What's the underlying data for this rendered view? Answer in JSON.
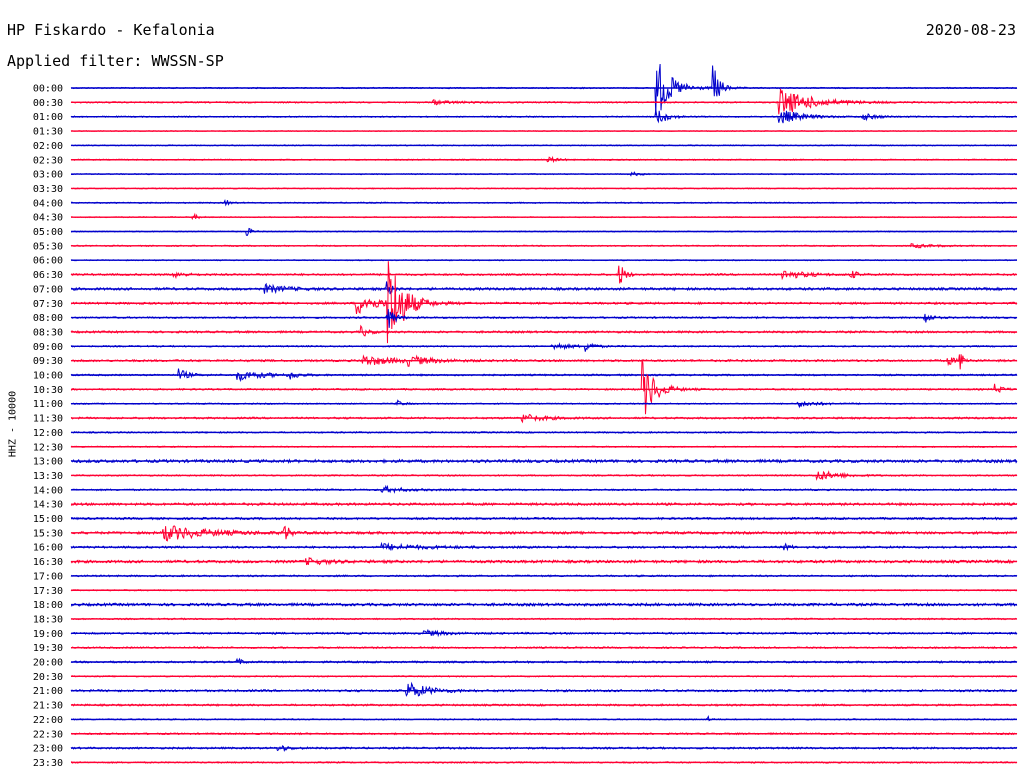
{
  "header": {
    "station": "HP Fiskardo - Kefalonia",
    "date": "2020-08-23",
    "filter": "Applied filter: WWSSN-SP"
  },
  "chart_data": {
    "type": "line",
    "title": "HP Fiskardo - Kefalonia",
    "ylabel": "HHZ - 10000",
    "colors": [
      "#0000cc",
      "#ff0033"
    ],
    "row_labels": [
      "00:00",
      "00:30",
      "01:00",
      "01:30",
      "02:00",
      "02:30",
      "03:00",
      "03:30",
      "04:00",
      "04:30",
      "05:00",
      "05:30",
      "06:00",
      "06:30",
      "07:00",
      "07:30",
      "08:00",
      "08:30",
      "09:00",
      "09:30",
      "10:00",
      "10:30",
      "11:00",
      "11:30",
      "12:00",
      "12:30",
      "13:00",
      "13:30",
      "14:00",
      "14:30",
      "15:00",
      "15:30",
      "16:00",
      "16:30",
      "17:00",
      "17:30",
      "18:00",
      "18:30",
      "19:00",
      "19:30",
      "20:00",
      "20:30",
      "21:00",
      "21:30",
      "22:00",
      "22:30",
      "23:00",
      "23:30"
    ],
    "noise": [
      0.6,
      0.7,
      0.6,
      0.4,
      0.5,
      0.6,
      0.5,
      0.5,
      0.6,
      0.5,
      0.5,
      0.6,
      0.5,
      0.9,
      1.2,
      1.0,
      0.8,
      1.0,
      0.7,
      1.0,
      0.8,
      0.8,
      0.6,
      0.9,
      0.7,
      0.6,
      1.4,
      0.7,
      0.8,
      1.2,
      1.0,
      1.2,
      1.0,
      1.3,
      0.8,
      0.6,
      1.3,
      0.7,
      0.9,
      0.8,
      0.9,
      0.6,
      1.0,
      0.9,
      0.6,
      0.8,
      0.9,
      0.7
    ],
    "events": [
      {
        "row": 0,
        "x": 0.62,
        "amp": 30,
        "dur": 0.014
      },
      {
        "row": 0,
        "x": 0.68,
        "amp": 22,
        "dur": 0.006
      },
      {
        "row": 1,
        "x": 0.384,
        "amp": 2,
        "dur": 0.02
      },
      {
        "row": 1,
        "x": 0.75,
        "amp": 14,
        "dur": 0.03
      },
      {
        "row": 2,
        "x": 0.62,
        "amp": 8,
        "dur": 0.01
      },
      {
        "row": 2,
        "x": 0.75,
        "amp": 8,
        "dur": 0.02
      },
      {
        "row": 2,
        "x": 0.838,
        "amp": 3,
        "dur": 0.015
      },
      {
        "row": 5,
        "x": 0.505,
        "amp": 3,
        "dur": 0.008
      },
      {
        "row": 6,
        "x": 0.593,
        "amp": 2,
        "dur": 0.008
      },
      {
        "row": 8,
        "x": 0.164,
        "amp": 3,
        "dur": 0.004
      },
      {
        "row": 9,
        "x": 0.13,
        "amp": 3,
        "dur": 0.004
      },
      {
        "row": 10,
        "x": 0.187,
        "amp": 4,
        "dur": 0.004
      },
      {
        "row": 11,
        "x": 0.89,
        "amp": 2,
        "dur": 0.02
      },
      {
        "row": 13,
        "x": 0.11,
        "amp": 3,
        "dur": 0.01
      },
      {
        "row": 13,
        "x": 0.581,
        "amp": 11,
        "dur": 0.005
      },
      {
        "row": 13,
        "x": 0.753,
        "amp": 5,
        "dur": 0.02
      },
      {
        "row": 13,
        "x": 0.825,
        "amp": 4,
        "dur": 0.006
      },
      {
        "row": 14,
        "x": 0.205,
        "amp": 4,
        "dur": 0.02
      },
      {
        "row": 14,
        "x": 0.335,
        "amp": 8,
        "dur": 0.004
      },
      {
        "row": 15,
        "x": 0.302,
        "amp": 11,
        "dur": 0.02
      },
      {
        "row": 15,
        "x": 0.336,
        "amp": 50,
        "dur": 0.014
      },
      {
        "row": 16,
        "x": 0.335,
        "amp": 14,
        "dur": 0.006
      },
      {
        "row": 16,
        "x": 0.902,
        "amp": 7,
        "dur": 0.006
      },
      {
        "row": 17,
        "x": 0.308,
        "amp": 5,
        "dur": 0.006
      },
      {
        "row": 18,
        "x": 0.51,
        "amp": 3,
        "dur": 0.02
      },
      {
        "row": 18,
        "x": 0.545,
        "amp": 5,
        "dur": 0.006
      },
      {
        "row": 19,
        "x": 0.31,
        "amp": 5,
        "dur": 0.03
      },
      {
        "row": 19,
        "x": 0.358,
        "amp": 4,
        "dur": 0.02
      },
      {
        "row": 19,
        "x": 0.928,
        "amp": 4,
        "dur": 0.006
      },
      {
        "row": 19,
        "x": 0.941,
        "amp": 8,
        "dur": 0.004
      },
      {
        "row": 20,
        "x": 0.115,
        "amp": 6,
        "dur": 0.008
      },
      {
        "row": 20,
        "x": 0.177,
        "amp": 5,
        "dur": 0.025
      },
      {
        "row": 20,
        "x": 0.233,
        "amp": 4,
        "dur": 0.006
      },
      {
        "row": 21,
        "x": 0.605,
        "amp": 30,
        "dur": 0.012
      },
      {
        "row": 21,
        "x": 0.978,
        "amp": 5,
        "dur": 0.006
      },
      {
        "row": 22,
        "x": 0.345,
        "amp": 3,
        "dur": 0.006
      },
      {
        "row": 22,
        "x": 0.77,
        "amp": 3,
        "dur": 0.02
      },
      {
        "row": 23,
        "x": 0.478,
        "amp": 4,
        "dur": 0.02
      },
      {
        "row": 27,
        "x": 0.79,
        "amp": 5,
        "dur": 0.02
      },
      {
        "row": 28,
        "x": 0.33,
        "amp": 3,
        "dur": 0.02
      },
      {
        "row": 31,
        "x": 0.098,
        "amp": 8,
        "dur": 0.04
      },
      {
        "row": 31,
        "x": 0.226,
        "amp": 10,
        "dur": 0.004
      },
      {
        "row": 32,
        "x": 0.33,
        "amp": 3,
        "dur": 0.04
      },
      {
        "row": 32,
        "x": 0.754,
        "amp": 3,
        "dur": 0.006
      },
      {
        "row": 33,
        "x": 0.25,
        "amp": 3,
        "dur": 0.02
      },
      {
        "row": 38,
        "x": 0.372,
        "amp": 3,
        "dur": 0.02
      },
      {
        "row": 40,
        "x": 0.177,
        "amp": 3,
        "dur": 0.005
      },
      {
        "row": 42,
        "x": 0.355,
        "amp": 9,
        "dur": 0.02
      },
      {
        "row": 44,
        "x": 0.673,
        "amp": 3,
        "dur": 0.003
      },
      {
        "row": 46,
        "x": 0.22,
        "amp": 3,
        "dur": 0.01
      }
    ]
  }
}
